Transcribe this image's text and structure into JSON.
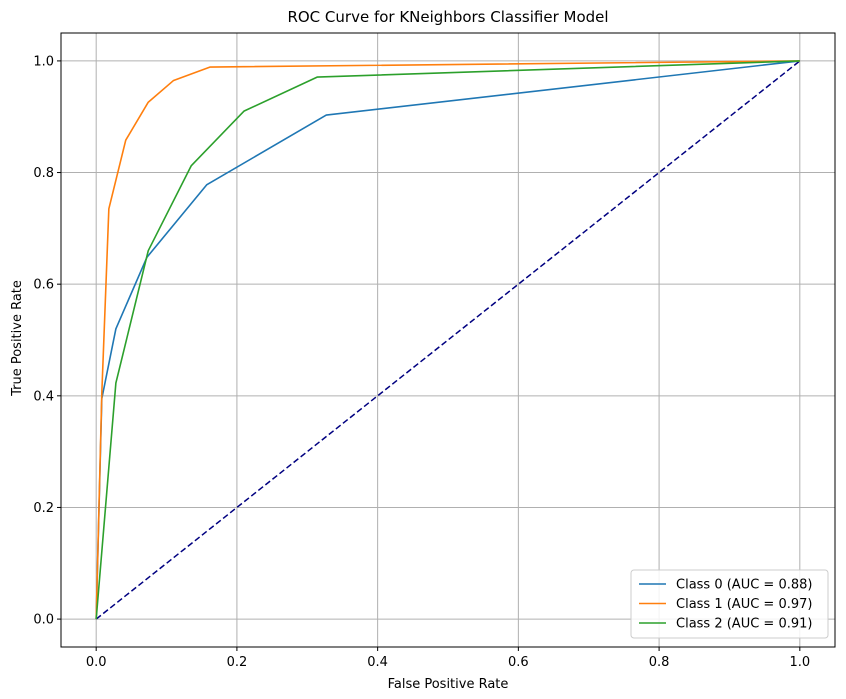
{
  "chart_data": {
    "type": "line",
    "title": "ROC Curve for KNeighbors Classifier Model",
    "xlabel": "False Positive Rate",
    "ylabel": "True Positive Rate",
    "xlim": [
      -0.05,
      1.05
    ],
    "ylim": [
      -0.05,
      1.05
    ],
    "xticks": [
      0.0,
      0.2,
      0.4,
      0.6,
      0.8,
      1.0
    ],
    "xtick_labels": [
      "0.0",
      "0.2",
      "0.4",
      "0.6",
      "0.8",
      "1.0"
    ],
    "yticks": [
      0.0,
      0.2,
      0.4,
      0.6,
      0.8,
      1.0
    ],
    "ytick_labels": [
      "0.0",
      "0.2",
      "0.4",
      "0.6",
      "0.8",
      "1.0"
    ],
    "grid": true,
    "legend_position": "lower-right",
    "series": [
      {
        "name": "Class 0 (AUC = 0.88)",
        "color": "#1f77b4",
        "x": [
          0.0,
          0.008,
          0.028,
          0.072,
          0.157,
          0.327,
          1.0
        ],
        "y": [
          0.0,
          0.395,
          0.52,
          0.648,
          0.778,
          0.903,
          1.0
        ]
      },
      {
        "name": "Class 1 (AUC = 0.97)",
        "color": "#ff7f0e",
        "x": [
          0.0,
          0.008,
          0.018,
          0.042,
          0.074,
          0.11,
          0.162,
          1.0
        ],
        "y": [
          0.0,
          0.405,
          0.735,
          0.858,
          0.926,
          0.965,
          0.989,
          1.0
        ]
      },
      {
        "name": "Class 2 (AUC = 0.91)",
        "color": "#2ca02c",
        "x": [
          0.0,
          0.028,
          0.074,
          0.135,
          0.21,
          0.314,
          1.0
        ],
        "y": [
          0.0,
          0.423,
          0.66,
          0.812,
          0.91,
          0.971,
          1.0
        ]
      }
    ],
    "reference_line": {
      "color": "#000080",
      "style": "dashed",
      "x": [
        0.0,
        1.0
      ],
      "y": [
        0.0,
        1.0
      ]
    }
  }
}
